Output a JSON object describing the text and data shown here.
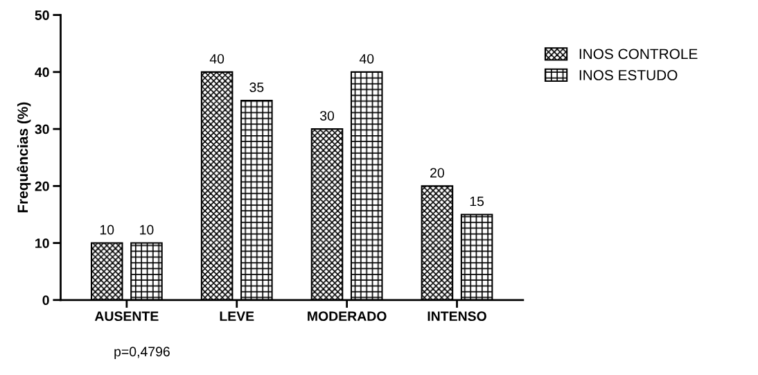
{
  "chart_data": {
    "type": "bar",
    "ylabel": "Frequências (%)",
    "categories": [
      "AUSENTE",
      "LEVE",
      "MODERADO",
      "INTENSO"
    ],
    "series": [
      {
        "name": "INOS CONTROLE",
        "color": "#000000",
        "values": [
          10,
          40,
          30,
          20
        ]
      },
      {
        "name": "INOS ESTUDO",
        "color": "#000000",
        "values": [
          10,
          35,
          40,
          15
        ]
      }
    ],
    "ylim": [
      0,
      50
    ],
    "yticks": [
      0,
      10,
      20,
      30,
      40,
      50
    ],
    "data_labels": true,
    "legend": "top right",
    "grid": false,
    "annotations": [
      "p=0,4796"
    ]
  }
}
